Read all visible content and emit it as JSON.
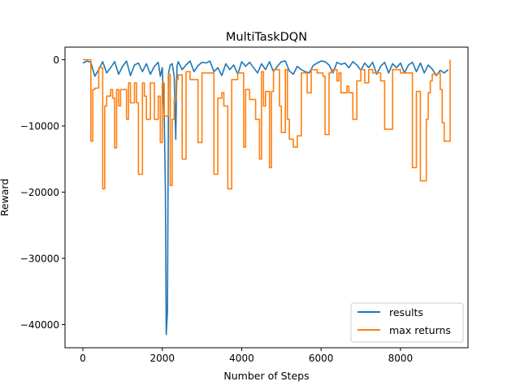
{
  "chart_data": {
    "type": "line",
    "title": "MultiTaskDQN",
    "xlabel": "Number of Steps",
    "ylabel": "Reward",
    "xlim": [
      -450,
      9700
    ],
    "ylim": [
      -43500,
      1900
    ],
    "xticks": [
      0,
      2000,
      4000,
      6000,
      8000
    ],
    "xtick_labels": [
      "0",
      "2000",
      "4000",
      "6000",
      "8000"
    ],
    "yticks": [
      0,
      -10000,
      -20000,
      -30000,
      -40000
    ],
    "ytick_labels": [
      "0",
      "−10000",
      "−20000",
      "−30000",
      "−40000"
    ],
    "grid": false,
    "legend_position": "lower-right",
    "series": [
      {
        "name": "results",
        "color": "#1f77b4",
        "x": [
          0,
          100,
          200,
          300,
          400,
          500,
          600,
          700,
          800,
          900,
          1000,
          1100,
          1200,
          1300,
          1400,
          1500,
          1600,
          1700,
          1800,
          1900,
          1950,
          2000,
          2050,
          2080,
          2100,
          2130,
          2160,
          2200,
          2250,
          2300,
          2340,
          2370,
          2400,
          2500,
          2600,
          2700,
          2800,
          2900,
          3000,
          3100,
          3200,
          3300,
          3400,
          3500,
          3600,
          3700,
          3800,
          3900,
          4000,
          4100,
          4200,
          4300,
          4400,
          4500,
          4600,
          4700,
          4800,
          4900,
          5000,
          5100,
          5200,
          5300,
          5400,
          5500,
          5600,
          5700,
          5800,
          5900,
          6000,
          6100,
          6200,
          6300,
          6400,
          6500,
          6600,
          6700,
          6800,
          6900,
          7000,
          7100,
          7200,
          7300,
          7400,
          7500,
          7600,
          7700,
          7800,
          7900,
          8000,
          8100,
          8200,
          8300,
          8400,
          8500,
          8600,
          8700,
          8800,
          8900,
          9000,
          9100,
          9200
        ],
        "y": [
          -500,
          -200,
          -400,
          -2500,
          -1500,
          -300,
          -2000,
          -1200,
          -300,
          -2200,
          -1000,
          -200,
          -2400,
          -800,
          -500,
          -1800,
          -600,
          -2200,
          -1000,
          -400,
          -2500,
          -1200,
          -9000,
          -20000,
          -41500,
          -38000,
          -2000,
          -800,
          -600,
          -2500,
          -12000,
          -1000,
          -300,
          -1500,
          -800,
          -200,
          -1800,
          -900,
          -400,
          -500,
          -200,
          -1800,
          -1200,
          -2400,
          -600,
          -1500,
          -800,
          -2200,
          -300,
          -1000,
          -400,
          -1200,
          -2000,
          -600,
          -1500,
          -300,
          -1800,
          -1000,
          -300,
          -200,
          -1700,
          -2200,
          -1000,
          -1500,
          -1800,
          -2000,
          -900,
          -500,
          -200,
          -300,
          -800,
          -2000,
          -400,
          -700,
          -500,
          -1200,
          -300,
          -800,
          -1600,
          -500,
          -1200,
          -400,
          -2200,
          -1000,
          -400,
          -2000,
          -600,
          -1200,
          -500,
          -2000,
          -800,
          -400,
          -1800,
          -500,
          -2000,
          -800,
          -1400,
          -2400,
          -1600,
          -2000,
          -1500
        ]
      },
      {
        "name": "max returns",
        "color": "#ff7f0e",
        "x": [
          0,
          200,
          250,
          300,
          400,
          500,
          520,
          550,
          600,
          700,
          750,
          800,
          850,
          900,
          950,
          1050,
          1100,
          1150,
          1200,
          1300,
          1350,
          1400,
          1500,
          1550,
          1600,
          1650,
          1700,
          1800,
          1820,
          1900,
          1950,
          2000,
          2050,
          2080,
          2150,
          2200,
          2250,
          2300,
          2350,
          2400,
          2500,
          2600,
          2700,
          2850,
          2900,
          3000,
          3200,
          3300,
          3350,
          3400,
          3500,
          3550,
          3650,
          3700,
          3750,
          3800,
          3900,
          4000,
          4050,
          4100,
          4200,
          4350,
          4400,
          4450,
          4500,
          4550,
          4600,
          4700,
          4750,
          4800,
          4900,
          4950,
          5000,
          5100,
          5150,
          5200,
          5300,
          5400,
          5450,
          5500,
          5600,
          5650,
          5750,
          5800,
          5900,
          6000,
          6050,
          6100,
          6150,
          6200,
          6250,
          6300,
          6400,
          6450,
          6500,
          6600,
          6650,
          6700,
          6800,
          6900,
          7000,
          7100,
          7200,
          7300,
          7400,
          7500,
          7600,
          7700,
          7800,
          7900,
          8000,
          8100,
          8200,
          8300,
          8400,
          8450,
          8500,
          8550,
          8650,
          8700,
          8750,
          8800,
          8850,
          8900,
          8950,
          9000,
          9050,
          9100,
          9150,
          9200,
          9250
        ],
        "y": [
          0,
          -12300,
          -4500,
          -4300,
          -1200,
          -19500,
          -19500,
          -7000,
          -5500,
          -4500,
          -5800,
          -13300,
          -4500,
          -7000,
          -4500,
          -4500,
          -9000,
          -3500,
          -6500,
          -3500,
          -6500,
          -17300,
          -3500,
          -5500,
          -9000,
          -9000,
          -3500,
          -9000,
          -9000,
          -5500,
          -12500,
          -3500,
          -8500,
          -8500,
          -2200,
          -19000,
          -9000,
          -6000,
          -3000,
          -2300,
          -15000,
          -1800,
          -3000,
          -3000,
          -12500,
          -2000,
          -2000,
          -17300,
          -17300,
          -5800,
          -5000,
          -7000,
          -19500,
          -19500,
          -3000,
          -3000,
          -2000,
          -2000,
          -13200,
          -4500,
          -6000,
          -9000,
          -9000,
          -15000,
          -1800,
          -7000,
          -4800,
          -16300,
          -4800,
          -1500,
          -1500,
          -7000,
          -11000,
          -1500,
          -9000,
          -12000,
          -13200,
          -11500,
          -11500,
          -2000,
          -2000,
          -5000,
          -1500,
          -1500,
          -2000,
          -2000,
          -2500,
          -11300,
          -11300,
          -2000,
          -1800,
          -1500,
          -3200,
          -2000,
          -5000,
          -5000,
          -4000,
          -5000,
          -9000,
          -3200,
          -1500,
          -3500,
          -1500,
          -2000,
          -2000,
          -3200,
          -10500,
          -10500,
          -1500,
          -1500,
          -2000,
          -2000,
          -2000,
          -16300,
          -4800,
          -4800,
          -18300,
          -18300,
          -9000,
          -5000,
          -3200,
          -2200,
          -2200,
          -2200,
          -2000,
          -4500,
          -9500,
          -12300,
          -12300,
          -12300,
          0
        ]
      }
    ]
  }
}
